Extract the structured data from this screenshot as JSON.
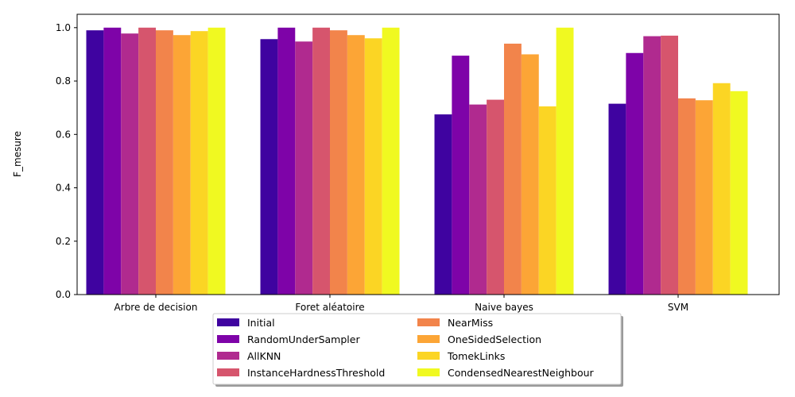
{
  "chart_data": {
    "type": "bar",
    "title": "",
    "xlabel": "",
    "ylabel": "F_mesure",
    "ylim": [
      0,
      1.05
    ],
    "yticks": [
      "0.0",
      "0.2",
      "0.4",
      "0.6",
      "0.8",
      "1.0"
    ],
    "grid": false,
    "legend_position": "bottom-center",
    "categories": [
      "Arbre de decision",
      "Foret aléatoire",
      "Naive bayes",
      "SVM"
    ],
    "series": [
      {
        "name": "Initial",
        "color": "#3f03a0",
        "values": [
          0.99,
          0.957,
          0.675,
          0.715
        ]
      },
      {
        "name": "RandomUnderSampler",
        "color": "#7e03a8",
        "values": [
          1.0,
          1.0,
          0.895,
          0.905
        ]
      },
      {
        "name": "AllKNN",
        "color": "#b02a8f",
        "values": [
          0.978,
          0.948,
          0.712,
          0.968
        ]
      },
      {
        "name": "InstanceHardnessThreshold",
        "color": "#d6556d",
        "values": [
          1.0,
          1.0,
          0.73,
          0.97
        ]
      },
      {
        "name": "NearMiss",
        "color": "#f2844b",
        "values": [
          0.99,
          0.99,
          0.94,
          0.735
        ]
      },
      {
        "name": "OneSidedSelection",
        "color": "#fca536",
        "values": [
          0.972,
          0.972,
          0.9,
          0.728
        ]
      },
      {
        "name": "TomekLinks",
        "color": "#fbd524",
        "values": [
          0.987,
          0.96,
          0.705,
          0.792
        ]
      },
      {
        "name": "CondensedNearestNeighbour",
        "color": "#f0f921",
        "values": [
          1.0,
          1.0,
          1.0,
          0.762
        ]
      }
    ]
  }
}
